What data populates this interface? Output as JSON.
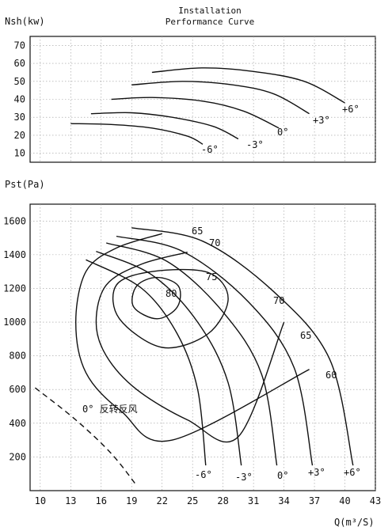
{
  "header": {
    "line1": "Installation",
    "line2": "Performance Curve"
  },
  "chart_data": [
    {
      "type": "line",
      "ylabel": "Nsh(kw)",
      "xlim": [
        9,
        43
      ],
      "ylim": [
        5,
        75
      ],
      "yticks": [
        10,
        20,
        30,
        40,
        50,
        60,
        70
      ],
      "grid": true,
      "series": [
        {
          "name": "-6°",
          "points": [
            [
              13,
              26.5
            ],
            [
              17,
              26
            ],
            [
              21,
              24
            ],
            [
              24.5,
              19.5
            ],
            [
              26,
              15
            ]
          ]
        },
        {
          "name": "-3°",
          "points": [
            [
              15,
              32
            ],
            [
              19,
              32.5
            ],
            [
              23,
              30
            ],
            [
              27,
              25
            ],
            [
              29.5,
              18
            ]
          ]
        },
        {
          "name": "0°",
          "points": [
            [
              17,
              40
            ],
            [
              21,
              41
            ],
            [
              26,
              39
            ],
            [
              30,
              33.5
            ],
            [
              33.5,
              24
            ]
          ]
        },
        {
          "name": "+3°",
          "points": [
            [
              19,
              48
            ],
            [
              24,
              50
            ],
            [
              29,
              48
            ],
            [
              33,
              43
            ],
            [
              36.5,
              32
            ]
          ]
        },
        {
          "name": "+6°",
          "points": [
            [
              21,
              55
            ],
            [
              26,
              57.5
            ],
            [
              31,
              55.5
            ],
            [
              36,
              50
            ],
            [
              40,
              38
            ]
          ]
        }
      ],
      "annotations": [
        "-6°",
        "-3°",
        "0°",
        "+3°",
        "+6°"
      ]
    },
    {
      "type": "line",
      "ylabel": "Pst(Pa)",
      "xlabel": "Q(m³/S)",
      "xlim": [
        9,
        43
      ],
      "ylim": [
        0,
        1700
      ],
      "xticks": [
        10,
        13,
        16,
        19,
        22,
        25,
        28,
        31,
        34,
        37,
        40,
        43
      ],
      "yticks": [
        200,
        400,
        600,
        800,
        1000,
        1200,
        1400,
        1600
      ],
      "grid": true,
      "series": [
        {
          "name": "-6°",
          "points": [
            [
              14.5,
              1370
            ],
            [
              20,
              1200
            ],
            [
              23.5,
              930
            ],
            [
              25.5,
              600
            ],
            [
              26.3,
              150
            ]
          ]
        },
        {
          "name": "-3°",
          "points": [
            [
              15.5,
              1420
            ],
            [
              21,
              1280
            ],
            [
              25.5,
              1000
            ],
            [
              28.5,
              640
            ],
            [
              29.8,
              150
            ]
          ]
        },
        {
          "name": "0°",
          "points": [
            [
              16.5,
              1470
            ],
            [
              22.5,
              1360
            ],
            [
              28,
              1060
            ],
            [
              31.8,
              690
            ],
            [
              33.3,
              150
            ]
          ]
        },
        {
          "name": "+3°",
          "points": [
            [
              17.5,
              1510
            ],
            [
              24,
              1420
            ],
            [
              30.5,
              1120
            ],
            [
              35,
              730
            ],
            [
              36.8,
              150
            ]
          ]
        },
        {
          "name": "+6°",
          "points": [
            [
              19,
              1560
            ],
            [
              26,
              1480
            ],
            [
              33,
              1180
            ],
            [
              38.5,
              780
            ],
            [
              40.8,
              150
            ]
          ]
        },
        {
          "name": "0° 反转反风",
          "style": "dashed",
          "points": [
            [
              9.5,
              610
            ],
            [
              13.5,
              420
            ],
            [
              17,
              220
            ],
            [
              19.5,
              30
            ]
          ]
        }
      ],
      "efficiency_contours": [
        {
          "name": "80",
          "shape": "closed",
          "points": [
            [
              21.5,
              1265
            ],
            [
              19.5,
              1215
            ],
            [
              19.2,
              1090
            ],
            [
              21.5,
              1020
            ],
            [
              23.5,
              1090
            ],
            [
              23.6,
              1215
            ]
          ]
        },
        {
          "name": "75",
          "shape": "closed",
          "points": [
            [
              21,
              1300
            ],
            [
              17.5,
              1220
            ],
            [
              17.8,
              1020
            ],
            [
              22,
              850
            ],
            [
              26.5,
              930
            ],
            [
              28.5,
              1140
            ],
            [
              26.5,
              1295
            ]
          ]
        },
        {
          "name": "70",
          "shape": "open",
          "points": [
            [
              24.5,
              1415
            ],
            [
              20,
              1345
            ],
            [
              16.5,
              1220
            ],
            [
              15.5,
              1000
            ],
            [
              16.5,
              800
            ],
            [
              19.5,
              600
            ],
            [
              24.5,
              420
            ],
            [
              29.5,
              320
            ],
            [
              34,
              1000
            ]
          ]
        },
        {
          "name": "65",
          "shape": "open",
          "points": [
            [
              22,
              1525
            ],
            [
              17.5,
              1440
            ],
            [
              14.5,
              1300
            ],
            [
              13.5,
              1000
            ],
            [
              14.5,
              700
            ],
            [
              18,
              470
            ],
            [
              23,
              300
            ],
            [
              36.5,
              720
            ]
          ]
        },
        {
          "name": "60",
          "shape": "open",
          "points": [
            [
              38.5,
              660
            ]
          ]
        }
      ],
      "efficiency_labels": [
        "65",
        "70",
        "75",
        "80",
        "70",
        "65",
        "60"
      ],
      "angle_labels": [
        "-6°",
        "-3°",
        "0°",
        "+3°",
        "+6°"
      ]
    }
  ]
}
